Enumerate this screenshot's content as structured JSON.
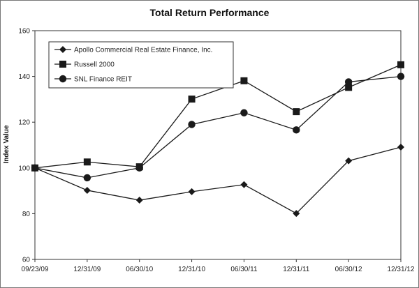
{
  "chart_data": {
    "type": "line",
    "title": "Total Return Performance",
    "xlabel": "",
    "ylabel": "Index Value",
    "categories": [
      "09/23/09",
      "12/31/09",
      "06/30/10",
      "12/31/10",
      "06/30/11",
      "12/31/11",
      "06/30/12",
      "12/31/12"
    ],
    "ylim": [
      60,
      160
    ],
    "yticks": [
      60,
      80,
      100,
      120,
      140,
      160
    ],
    "grid": false,
    "legend": "top-left",
    "series": [
      {
        "name": "Apollo Commercial Real Estate Finance, Inc.",
        "marker": "diamond",
        "values": [
          100,
          90.2,
          85.9,
          89.6,
          92.7,
          80.1,
          103.1,
          109.1
        ]
      },
      {
        "name": "Russell 2000",
        "marker": "square",
        "values": [
          100,
          102.6,
          100.5,
          130.1,
          138.1,
          124.6,
          135.2,
          145.1
        ]
      },
      {
        "name": "SNL Finance REIT",
        "marker": "circle",
        "values": [
          100,
          95.7,
          100.0,
          119.0,
          124.1,
          116.6,
          137.6,
          140.0
        ]
      }
    ]
  }
}
